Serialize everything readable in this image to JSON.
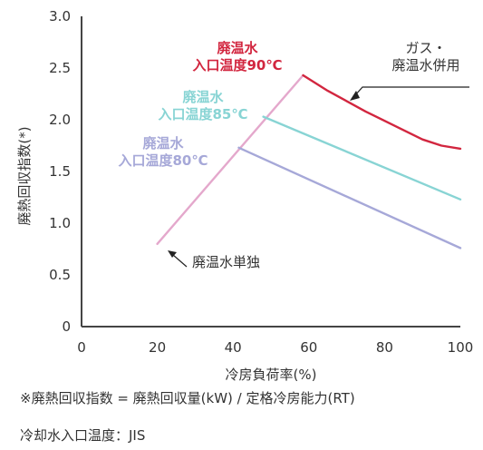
{
  "chart_data": {
    "type": "line",
    "xlabel": "冷房負荷率(%)",
    "ylabel": "廃熱回収指数(*)",
    "xlim": [
      0,
      100
    ],
    "ylim": [
      0,
      3.0
    ],
    "x_ticks": [
      "0",
      "20",
      "40",
      "60",
      "80",
      "100"
    ],
    "y_ticks": [
      "0",
      "0.5",
      "1.0",
      "1.5",
      "2.0",
      "2.5",
      "3.0"
    ],
    "grid": false,
    "series": [
      {
        "name": "廃温水単独",
        "color": "#e4a8cc",
        "x": [
          20,
          58.5
        ],
        "y": [
          0.8,
          2.43
        ]
      },
      {
        "name": "廃温水 入口温度80℃",
        "color": "#a6a8d8",
        "x": [
          41.5,
          100
        ],
        "y": [
          1.73,
          0.76
        ]
      },
      {
        "name": "廃温水 入口温度85℃",
        "color": "#88d4d4",
        "x": [
          48,
          100
        ],
        "y": [
          2.03,
          1.23
        ]
      },
      {
        "name": "廃温水 入口温度90℃ / ガス・廃温水併用",
        "color": "#d2263f",
        "x": [
          58.5,
          65,
          75,
          85,
          90,
          95,
          100
        ],
        "y": [
          2.43,
          2.28,
          2.08,
          1.9,
          1.81,
          1.75,
          1.72
        ]
      }
    ],
    "annotations": {
      "t90": {
        "line1": "廃温水",
        "line2": "入口温度90℃",
        "color": "#d2263f"
      },
      "t85": {
        "line1": "廃温水",
        "line2": "入口温度85℃",
        "color": "#88d4d4"
      },
      "t80": {
        "line1": "廃温水",
        "line2": "入口温度80℃",
        "color": "#a6a8d8"
      },
      "combined": {
        "line1": "ガス・",
        "line2": "廃温水併用",
        "color": "#333333"
      },
      "single": {
        "text": "廃温水単独",
        "color": "#333333"
      }
    }
  },
  "notes": {
    "formula": "※廃熱回収指数 = 廃熱回収量(kW) / 定格冷房能力(RT)",
    "cooling_water": "冷却水入口温度：JIS"
  }
}
